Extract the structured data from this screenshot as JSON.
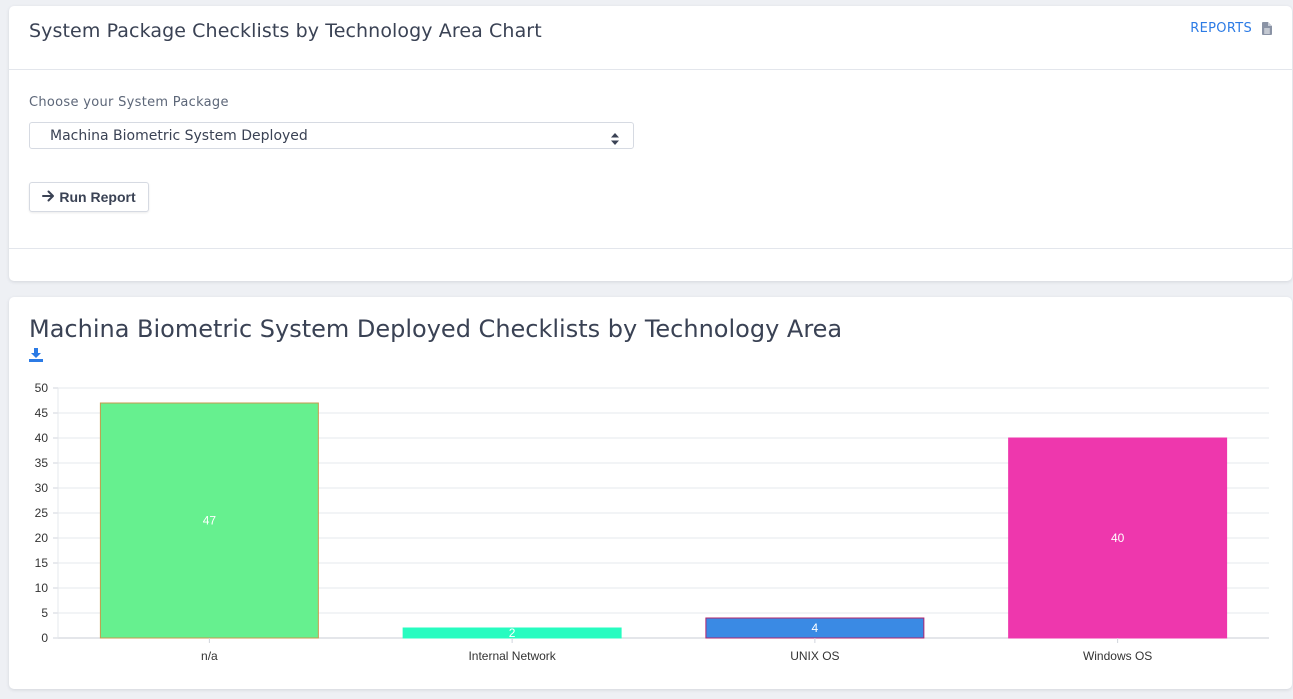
{
  "top_card": {
    "title": "System Package Checklists by Technology Area Chart",
    "reports_link": "REPORTS",
    "reports_icon": "file-icon",
    "field_label": "Choose your System Package",
    "select_value": "Machina Biometric System Deployed",
    "run_button": "Run Report",
    "run_icon": "arrow-right-icon"
  },
  "chart_card": {
    "title": "Machina Biometric System Deployed Checklists by Technology Area",
    "download_icon": "download-icon"
  },
  "colors": {
    "accent": "#2c7be5",
    "bars": [
      "#66f08f",
      "#27fcc0",
      "#3a8ae4",
      "#ee37ad"
    ],
    "bar_borders": [
      "#c79a4c",
      "#27fcc0",
      "#b0246e",
      "#ee37ad"
    ]
  },
  "chart_data": {
    "type": "bar",
    "categories": [
      "n/a",
      "Internal Network",
      "UNIX OS",
      "Windows OS"
    ],
    "values": [
      47,
      2,
      4,
      40
    ],
    "title": "",
    "xlabel": "",
    "ylabel": "",
    "ylim": [
      0,
      50
    ],
    "yticks": [
      0,
      5,
      10,
      15,
      20,
      25,
      30,
      35,
      40,
      45,
      50
    ],
    "grid": true,
    "data_labels": true
  }
}
